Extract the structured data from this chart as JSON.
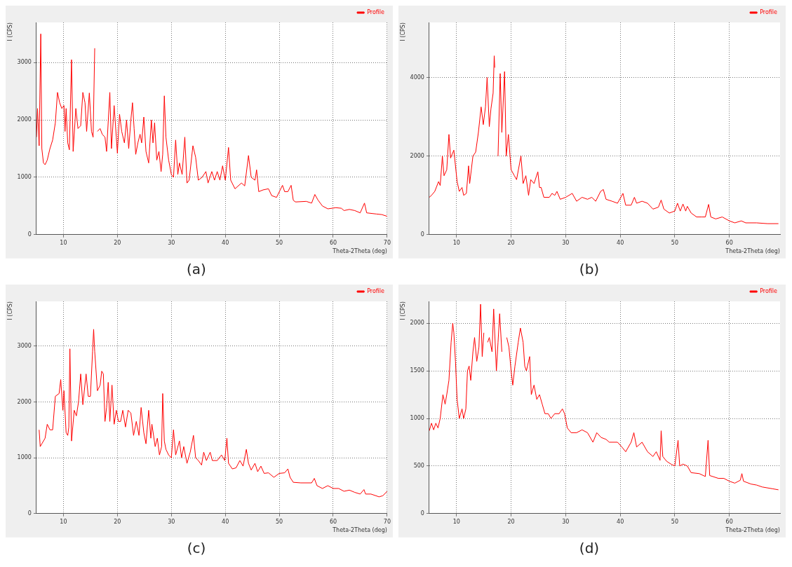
{
  "chart_data": [
    {
      "type": "line",
      "title": "(a)",
      "xlabel": "Theta-2Theta (deg)",
      "ylabel": "I (CPS)",
      "xlim": [
        5,
        70
      ],
      "xticks": [
        10,
        20,
        30,
        40,
        50,
        60,
        70
      ],
      "ylim": [
        0,
        3700
      ],
      "yticks": [
        0,
        1000,
        2000,
        3000
      ],
      "grid": true,
      "legend": "top right",
      "marker": "none",
      "line_style": "solid",
      "series": [
        {
          "name": "Profile",
          "color": "#ff0000",
          "x": [
            5.0,
            5.2,
            5.5,
            5.8,
            6.0,
            6.3,
            6.6,
            7,
            7.5,
            8,
            8.5,
            8.9,
            9.3,
            9.7,
            10.1,
            10.3,
            10.5,
            10.8,
            11.1,
            11.5,
            11.8,
            12.3,
            12.7,
            13.2,
            13.6,
            14,
            14.3,
            14.8,
            15.2,
            15.5,
            15.8,
            16.0,
            16.3,
            16.8,
            17.2,
            17.7,
            18.0,
            18.6,
            18.9,
            19.4,
            19.8,
            20.0,
            20.4,
            20.8,
            21.3,
            21.7,
            22.1,
            22.5,
            22.8,
            23.1,
            23.4,
            23.8,
            24.2,
            24.5,
            24.9,
            25.3,
            25.8,
            26.3,
            26.6,
            26.9,
            27.3,
            27.7,
            28.1,
            28.4,
            28.7,
            29,
            29.5,
            30,
            30.4,
            30.8,
            31.2,
            31.5,
            32,
            32.5,
            32.9,
            33.3,
            34,
            34.5,
            35,
            35.7,
            36.4,
            36.8,
            37.5,
            38,
            38.5,
            39,
            39.5,
            40,
            40.6,
            41,
            41.8,
            43,
            43.6,
            44.3,
            44.8,
            45.5,
            45.8,
            46.2,
            47,
            48,
            48.6,
            49.5,
            50.6,
            51,
            51.6,
            52.2,
            52.6,
            53,
            55,
            56,
            56.6,
            57.2,
            58,
            59,
            60.5,
            61.5,
            62,
            63,
            64,
            65,
            65.8,
            66.2,
            68,
            69,
            70
          ],
          "values": [
            1700,
            2200,
            1550,
            3500,
            1500,
            1250,
            1220,
            1300,
            1500,
            1650,
            1950,
            2480,
            2300,
            2200,
            2250,
            1800,
            2200,
            1600,
            1480,
            3050,
            1450,
            2200,
            1850,
            1900,
            2480,
            2300,
            1800,
            2470,
            1800,
            1700,
            3250,
            null,
            1800,
            1850,
            1750,
            1700,
            1450,
            2480,
            1500,
            2250,
            1700,
            1420,
            2100,
            1800,
            1600,
            2000,
            1500,
            2000,
            2300,
            1850,
            1400,
            1600,
            1750,
            1600,
            2050,
            1450,
            1250,
            2000,
            1600,
            1950,
            1300,
            1450,
            1100,
            1400,
            2420,
            1700,
            1300,
            1050,
            1000,
            1650,
            1050,
            1250,
            1050,
            1700,
            900,
            950,
            1550,
            1350,
            950,
            1000,
            1100,
            900,
            1100,
            950,
            1100,
            950,
            1200,
            950,
            1520,
            950,
            800,
            900,
            850,
            1380,
            1000,
            950,
            1130,
            750,
            780,
            800,
            680,
            650,
            860,
            750,
            750,
            860,
            600,
            570,
            580,
            550,
            700,
            600,
            500,
            450,
            470,
            460,
            420,
            440,
            420,
            380,
            550,
            380,
            360,
            350,
            320
          ]
        }
      ]
    },
    {
      "type": "line",
      "title": "(b)",
      "xlabel": "Theta-2Theta (deg)",
      "ylabel": "I (CPS)",
      "xlim": [
        5,
        69.3
      ],
      "xticks": [
        10,
        20,
        30,
        40,
        50,
        60
      ],
      "ylim": [
        0,
        5400
      ],
      "yticks": [
        0,
        2000,
        4000
      ],
      "grid": true,
      "legend": "top right",
      "marker": "none",
      "line_style": "solid",
      "series": [
        {
          "name": "Profile",
          "color": "#ff0000",
          "x": [
            5,
            5.4,
            6,
            6.7,
            7,
            7.4,
            7.7,
            8.2,
            8.6,
            8.9,
            9.5,
            10.1,
            10.5,
            11,
            11.3,
            11.8,
            12.2,
            12.4,
            13,
            13.5,
            14,
            14.5,
            14.9,
            15.3,
            15.6,
            16,
            16.3,
            16.7,
            16.9,
            17.0,
            17.2,
            17.6,
            18.0,
            18.3,
            18.8,
            19.1,
            19.5,
            19.8,
            20,
            20.6,
            21,
            21.8,
            22.2,
            22.7,
            23.2,
            23.6,
            24.2,
            24.9,
            25.2,
            25.5,
            26,
            27,
            27.5,
            28,
            28.4,
            29,
            30,
            31.2,
            32,
            33,
            34,
            34.8,
            35.5,
            36.4,
            36.9,
            37.4,
            38.5,
            39.5,
            40.5,
            41,
            42,
            42.6,
            43,
            44,
            45,
            46,
            47,
            47.5,
            48,
            49,
            50,
            50.5,
            51,
            51.5,
            52,
            52.3,
            53,
            54,
            55,
            55.6,
            56.2,
            56.6,
            57.5,
            58.7,
            60,
            61,
            62.2,
            63,
            65,
            67,
            69
          ],
          "values": [
            950,
            1000,
            1100,
            1350,
            1250,
            2000,
            1500,
            1650,
            2550,
            1950,
            2150,
            1350,
            1100,
            1200,
            1000,
            1050,
            1750,
            1300,
            2000,
            2100,
            2600,
            3250,
            2800,
            3250,
            4000,
            2750,
            3200,
            3600,
            4550,
            4250,
            null,
            2000,
            4100,
            2600,
            4150,
            2000,
            2550,
            2000,
            1650,
            1500,
            1400,
            2000,
            1300,
            1500,
            1000,
            1400,
            1300,
            1600,
            1200,
            1200,
            950,
            950,
            1050,
            1000,
            1100,
            900,
            950,
            1050,
            850,
            950,
            900,
            950,
            850,
            1100,
            1150,
            900,
            850,
            800,
            1050,
            750,
            750,
            950,
            800,
            850,
            800,
            650,
            700,
            880,
            650,
            550,
            600,
            800,
            600,
            780,
            600,
            720,
            550,
            450,
            450,
            450,
            770,
            450,
            400,
            450,
            350,
            300,
            350,
            300,
            300,
            280,
            280
          ]
        }
      ]
    },
    {
      "type": "line",
      "title": "(c)",
      "xlabel": "Theta-2Theta (deg)",
      "ylabel": "I (CPS)",
      "xlim": [
        5,
        70
      ],
      "xticks": [
        10,
        20,
        30,
        40,
        50,
        60,
        70
      ],
      "ylim": [
        0,
        3800
      ],
      "yticks": [
        0,
        1000,
        2000,
        3000
      ],
      "grid": true,
      "legend": "top right",
      "marker": "none",
      "line_style": "solid",
      "series": [
        {
          "name": "Profile",
          "color": "#ff0000",
          "x": [
            5.5,
            5.7,
            6,
            6.6,
            7,
            7.5,
            8,
            8.5,
            9.2,
            9.5,
            9.9,
            10.1,
            10.5,
            10.8,
            11,
            11.2,
            11.5,
            12,
            12.4,
            12.8,
            13.2,
            13.6,
            14.2,
            14.6,
            15,
            15.4,
            15.6,
            15.8,
            16.3,
            16.8,
            17.1,
            17.4,
            17.7,
            18,
            18.3,
            18.6,
            19,
            19.4,
            19.8,
            20.2,
            20.6,
            21,
            21.5,
            22,
            22.5,
            23,
            23.5,
            24,
            24.4,
            24.9,
            25.3,
            25.8,
            26.2,
            26.4,
            27,
            27.4,
            27.8,
            28.2,
            28.4,
            28.7,
            29,
            29.5,
            30,
            30.4,
            30.8,
            31.5,
            31.9,
            32.3,
            32.9,
            33.5,
            34.1,
            34.5,
            35,
            35.6,
            36,
            36.5,
            37.2,
            37.6,
            38.5,
            39.3,
            39.9,
            40.3,
            40.6,
            41.3,
            42,
            42.7,
            43.3,
            43.9,
            44.3,
            44.8,
            45.5,
            46,
            46.6,
            47.2,
            48,
            49,
            50,
            51,
            51.6,
            52,
            52.6,
            54,
            56,
            56.5,
            57,
            58,
            59,
            60,
            61,
            62,
            63,
            64,
            65,
            65.7,
            66,
            67,
            68.5,
            69.2,
            70
          ],
          "values": [
            1500,
            1200,
            1250,
            1350,
            1600,
            1500,
            1500,
            2100,
            2150,
            2400,
            1850,
            2200,
            1450,
            1400,
            1550,
            2950,
            1300,
            1850,
            1750,
            2000,
            2500,
            1950,
            2500,
            2100,
            2100,
            2900,
            3300,
            2900,
            2200,
            2300,
            2550,
            2500,
            1650,
            1900,
            2350,
            1650,
            2300,
            1600,
            1850,
            1650,
            1650,
            1850,
            1550,
            1850,
            1800,
            1400,
            1650,
            1400,
            1900,
            1450,
            1250,
            1850,
            1350,
            1600,
            1200,
            1350,
            1050,
            1200,
            2150,
            1300,
            1150,
            1050,
            1000,
            1500,
            1050,
            1300,
            1000,
            1200,
            900,
            1100,
            1400,
            1000,
            950,
            870,
            1100,
            950,
            1100,
            950,
            950,
            1050,
            950,
            1350,
            900,
            800,
            820,
            950,
            850,
            1150,
            900,
            780,
            900,
            750,
            850,
            720,
            730,
            650,
            720,
            730,
            800,
            650,
            560,
            550,
            550,
            630,
            500,
            450,
            500,
            450,
            450,
            400,
            420,
            380,
            350,
            430,
            350,
            350,
            300,
            320,
            400
          ]
        }
      ]
    },
    {
      "type": "line",
      "title": "(d)",
      "xlabel": "Theta-2Theta (deg)",
      "ylabel": "I (CPS)",
      "xlim": [
        5,
        69.3
      ],
      "xticks": [
        10,
        20,
        30,
        40,
        50,
        60
      ],
      "ylim": [
        0,
        2230
      ],
      "yticks": [
        0,
        500,
        1000,
        1500,
        2000
      ],
      "grid": true,
      "legend": "top right",
      "marker": "none",
      "line_style": "solid",
      "series": [
        {
          "name": "Profile",
          "color": "#ff0000",
          "x": [
            5,
            5.4,
            5.8,
            6.2,
            6.6,
            7,
            7.5,
            7.9,
            8.2,
            8.6,
            9,
            9.3,
            9.5,
            9.8,
            10.1,
            10.5,
            11,
            11.3,
            11.7,
            12,
            12.3,
            12.6,
            13,
            13.3,
            13.7,
            14.1,
            14.4,
            14.7,
            15,
            15.4,
            15.7,
            16,
            16.5,
            16.8,
            17.3,
            17.6,
            17.9,
            18.3,
            18.8,
            19.2,
            19.6,
            20,
            20.3,
            20.7,
            21.3,
            21.7,
            22.2,
            22.5,
            22.8,
            23.4,
            23.7,
            24.2,
            24.7,
            25.2,
            25.7,
            26.2,
            26.8,
            27.3,
            28,
            28.8,
            29.4,
            29.8,
            30.3,
            31,
            32,
            33,
            34,
            35,
            35.7,
            36.5,
            37.4,
            38,
            39.5,
            40.3,
            41,
            42,
            42.5,
            43,
            44,
            45,
            46,
            46.6,
            47.3,
            47.5,
            47.8,
            48.5,
            49.3,
            50,
            50.6,
            50.9,
            51.5,
            52.3,
            53,
            54.5,
            55.6,
            56.1,
            56.4,
            58,
            59,
            60,
            61,
            62,
            62.3,
            62.6,
            64,
            65,
            66,
            68,
            69
          ],
          "values": [
            870,
            950,
            880,
            950,
            900,
            1000,
            1250,
            1150,
            1250,
            1400,
            1800,
            2000,
            1900,
            1600,
            1200,
            1000,
            1100,
            1000,
            1100,
            1500,
            1550,
            1400,
            1700,
            1850,
            1600,
            1750,
            2200,
            1650,
            1900,
            null,
            1800,
            1850,
            1700,
            2150,
            1500,
            1800,
            2100,
            1700,
            null,
            1850,
            1750,
            1500,
            1350,
            1550,
            1800,
            1950,
            1800,
            1550,
            1500,
            1650,
            1250,
            1350,
            1200,
            1250,
            1150,
            1050,
            1050,
            1000,
            1050,
            1050,
            1100,
            1050,
            900,
            850,
            850,
            880,
            850,
            750,
            850,
            800,
            780,
            750,
            750,
            700,
            650,
            750,
            850,
            700,
            750,
            650,
            600,
            650,
            560,
            870,
            600,
            550,
            520,
            500,
            770,
            500,
            520,
            500,
            430,
            420,
            390,
            770,
            400,
            370,
            370,
            340,
            320,
            350,
            420,
            340,
            310,
            300,
            280,
            260,
            250
          ]
        }
      ]
    }
  ]
}
